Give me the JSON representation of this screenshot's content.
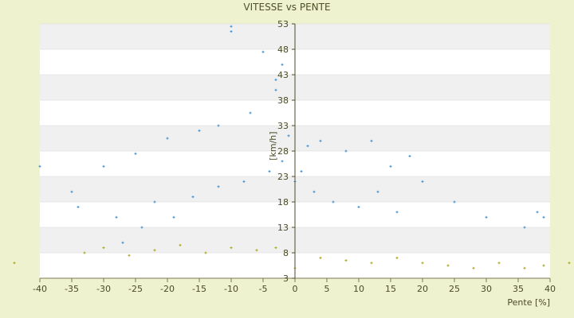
{
  "chart_data": {
    "type": "scatter",
    "title": "VITESSE vs PENTE",
    "xlabel": "Pente [%]",
    "ylabel": "[km/h]",
    "xlim": [
      -40,
      40
    ],
    "ylim": [
      3,
      53
    ],
    "x_ticks": [
      "-40",
      "-35",
      "-30",
      "-25",
      "-20",
      "-15",
      "-10",
      "-5",
      "0",
      "5",
      "10",
      "15",
      "20",
      "25",
      "30",
      "35",
      "40"
    ],
    "y_ticks": [
      "3",
      "8",
      "13",
      "18",
      "23",
      "28",
      "33",
      "38",
      "43",
      "48",
      "53"
    ],
    "plot_background": "#ffffff",
    "band_color": "#f0f0f0",
    "page_background": "#eef2cf",
    "series": [
      {
        "color": "#3a8fd9",
        "marker": "plus",
        "points": [
          [
            -10,
            52.5
          ],
          [
            -10,
            51.5
          ],
          [
            -2,
            45
          ],
          [
            -3,
            42
          ],
          [
            -5,
            47.5
          ],
          [
            -3,
            40
          ],
          [
            -7,
            35.5
          ],
          [
            -12,
            33
          ],
          [
            -15,
            32
          ],
          [
            -20,
            30.5
          ],
          [
            -25,
            27.5
          ],
          [
            -30,
            25
          ],
          [
            -40,
            25
          ],
          [
            -35,
            20
          ],
          [
            -34,
            17
          ],
          [
            -28,
            15
          ],
          [
            -22,
            18
          ],
          [
            15,
            25
          ],
          [
            20,
            22
          ],
          [
            25,
            18
          ],
          [
            30,
            15
          ],
          [
            38,
            16
          ],
          [
            39,
            15
          ],
          [
            36,
            13
          ],
          [
            18,
            27
          ],
          [
            12,
            30
          ],
          [
            8,
            28
          ],
          [
            4,
            30
          ],
          [
            2,
            29
          ],
          [
            -1,
            31
          ],
          [
            -2,
            26
          ],
          [
            -4,
            24
          ],
          [
            0,
            22
          ],
          [
            1,
            24
          ],
          [
            3,
            20
          ],
          [
            6,
            18
          ],
          [
            10,
            17
          ],
          [
            13,
            20
          ],
          [
            16,
            16
          ],
          [
            -8,
            22
          ],
          [
            -12,
            21
          ],
          [
            -16,
            19
          ],
          [
            -19,
            15
          ],
          [
            -24,
            13
          ],
          [
            -27,
            10
          ]
        ]
      },
      {
        "color": "#a6a60f",
        "marker": "plus",
        "points": [
          [
            -44,
            6
          ],
          [
            -33,
            8
          ],
          [
            -30,
            9
          ],
          [
            -26,
            7.5
          ],
          [
            -22,
            8.5
          ],
          [
            -18,
            9.5
          ],
          [
            -14,
            8
          ],
          [
            -10,
            9
          ],
          [
            -6,
            8.5
          ],
          [
            -3,
            9
          ],
          [
            0,
            5
          ],
          [
            4,
            7
          ],
          [
            8,
            6.5
          ],
          [
            12,
            6
          ],
          [
            16,
            7
          ],
          [
            20,
            6
          ],
          [
            24,
            5.5
          ],
          [
            28,
            5
          ],
          [
            32,
            6
          ],
          [
            36,
            5
          ],
          [
            39,
            5.5
          ],
          [
            43,
            6
          ]
        ]
      }
    ]
  }
}
